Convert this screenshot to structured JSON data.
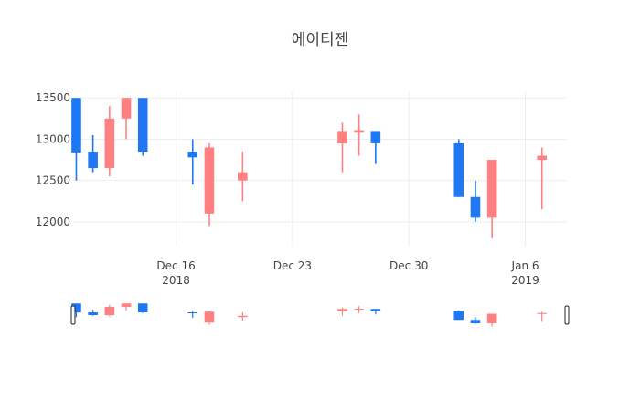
{
  "chart_data": {
    "type": "candlestick",
    "title": "에이티젠",
    "colors": {
      "increasing": "#ff8080",
      "decreasing": "#1f77f4",
      "grid": "#eeeeee",
      "text": "#444444"
    },
    "ylim": [
      11700,
      13580
    ],
    "xlim": [
      "2018-12-10",
      "2019-01-08"
    ],
    "y_ticks": [
      12000,
      12500,
      13000,
      13500
    ],
    "x_ticks": [
      {
        "date": "2018-12-16",
        "label": "Dec 16",
        "sublabel": "2018"
      },
      {
        "date": "2018-12-23",
        "label": "Dec 23",
        "sublabel": ""
      },
      {
        "date": "2018-12-30",
        "label": "Dec 30",
        "sublabel": ""
      },
      {
        "date": "2019-01-06",
        "label": "Jan 6",
        "sublabel": "2019"
      }
    ],
    "candles": [
      {
        "date": "2018-12-10",
        "open": 13500,
        "high": 13500,
        "low": 12500,
        "close": 12840
      },
      {
        "date": "2018-12-11",
        "open": 12850,
        "high": 13050,
        "low": 12600,
        "close": 12650
      },
      {
        "date": "2018-12-12",
        "open": 12650,
        "high": 13400,
        "low": 12550,
        "close": 13250
      },
      {
        "date": "2018-12-13",
        "open": 13250,
        "high": 13500,
        "low": 13000,
        "close": 13500
      },
      {
        "date": "2018-12-14",
        "open": 13500,
        "high": 13500,
        "low": 12800,
        "close": 12850
      },
      {
        "date": "2018-12-17",
        "open": 12850,
        "high": 13000,
        "low": 12450,
        "close": 12780
      },
      {
        "date": "2018-12-18",
        "open": 12100,
        "high": 12950,
        "low": 11950,
        "close": 12900
      },
      {
        "date": "2018-12-20",
        "open": 12500,
        "high": 12850,
        "low": 12250,
        "close": 12600
      },
      {
        "date": "2018-12-26",
        "open": 12950,
        "high": 13200,
        "low": 12600,
        "close": 13100
      },
      {
        "date": "2018-12-27",
        "open": 13080,
        "high": 13300,
        "low": 12800,
        "close": 13110
      },
      {
        "date": "2018-12-28",
        "open": 13100,
        "high": 13100,
        "low": 12700,
        "close": 12950
      },
      {
        "date": "2019-01-02",
        "open": 12950,
        "high": 13000,
        "low": 12300,
        "close": 12300
      },
      {
        "date": "2019-01-03",
        "open": 12300,
        "high": 12500,
        "low": 12000,
        "close": 12050
      },
      {
        "date": "2019-01-04",
        "open": 12050,
        "high": 12750,
        "low": 11800,
        "close": 12750
      },
      {
        "date": "2019-01-07",
        "open": 12750,
        "high": 12900,
        "low": 12150,
        "close": 12800
      }
    ]
  }
}
